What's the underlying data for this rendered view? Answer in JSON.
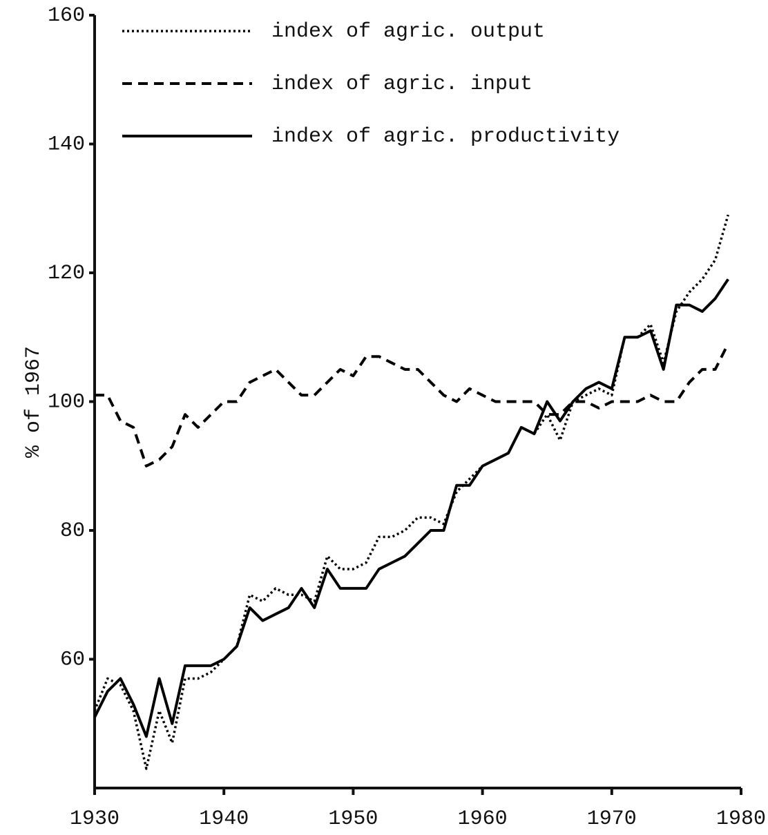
{
  "chart_data": {
    "type": "line",
    "y_label": "% of 1967",
    "x": [
      1930,
      1931,
      1932,
      1933,
      1934,
      1935,
      1936,
      1937,
      1938,
      1939,
      1940,
      1941,
      1942,
      1943,
      1944,
      1945,
      1946,
      1947,
      1948,
      1949,
      1950,
      1951,
      1952,
      1953,
      1954,
      1955,
      1956,
      1957,
      1958,
      1959,
      1960,
      1961,
      1962,
      1963,
      1964,
      1965,
      1966,
      1967,
      1968,
      1969,
      1970,
      1971,
      1972,
      1973,
      1974,
      1975,
      1976,
      1977,
      1978,
      1979
    ],
    "series": [
      {
        "name": "index of agric. output",
        "color": "#000000",
        "style": "dotted",
        "values": [
          52,
          57,
          56,
          52,
          43,
          52,
          47,
          57,
          57,
          58,
          60,
          62,
          70,
          69,
          71,
          70,
          70,
          69,
          76,
          74,
          74,
          75,
          79,
          79,
          80,
          82,
          82,
          81,
          86,
          88,
          90,
          91,
          92,
          96,
          95,
          98,
          94,
          100,
          101,
          102,
          101,
          110,
          110,
          112,
          106,
          114,
          117,
          119,
          122,
          129
        ]
      },
      {
        "name": "index of agric. input",
        "color": "#000000",
        "style": "dashed",
        "values": [
          101,
          101,
          97,
          96,
          90,
          91,
          93,
          98,
          96,
          98,
          100,
          100,
          103,
          104,
          105,
          103,
          101,
          101,
          103,
          105,
          104,
          107,
          107,
          106,
          105,
          105,
          103,
          101,
          100,
          102,
          101,
          100,
          100,
          100,
          100,
          98,
          98,
          100,
          100,
          99,
          100,
          100,
          100,
          101,
          100,
          100,
          103,
          105,
          105,
          109
        ]
      },
      {
        "name": "index of agric. productivity",
        "color": "#000000",
        "style": "solid",
        "values": [
          51,
          55,
          57,
          53,
          48,
          57,
          50,
          59,
          59,
          59,
          60,
          62,
          68,
          66,
          67,
          68,
          71,
          68,
          74,
          71,
          71,
          71,
          74,
          75,
          76,
          78,
          80,
          80,
          87,
          87,
          90,
          91,
          92,
          96,
          95,
          100,
          97,
          100,
          102,
          103,
          102,
          110,
          110,
          111,
          105,
          115,
          115,
          114,
          116,
          119
        ]
      }
    ],
    "xlim": [
      1930,
      1980
    ],
    "xticks": [
      1930,
      1940,
      1950,
      1960,
      1970,
      1980
    ],
    "ylim": [
      40,
      160
    ],
    "yticks": [
      60,
      80,
      100,
      120,
      140,
      160
    ],
    "grid": false,
    "legend": "top-left"
  }
}
